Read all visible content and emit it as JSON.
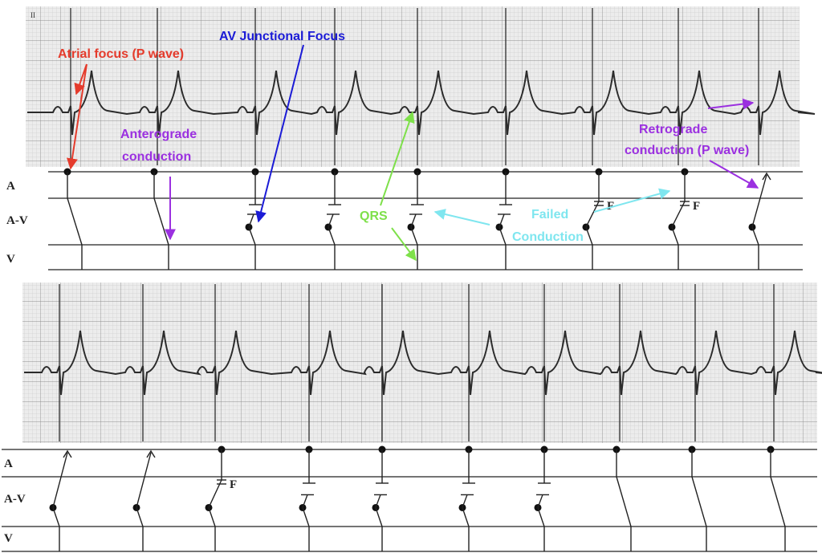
{
  "lead_label": "II",
  "ladder_labels": {
    "atrial": "A",
    "av": "A-V",
    "ventricular": "V"
  },
  "failed_marker": "F",
  "annotations": {
    "atrial_focus": {
      "text": "Atrial focus (P wave)",
      "color": "#e53b2c"
    },
    "av_junctional_focus": {
      "text": "AV Junctional Focus",
      "color": "#1b1bd6"
    },
    "anterograde": {
      "line1": "Anterograde",
      "line2": "conduction",
      "color": "#9b30e0"
    },
    "qrs": {
      "text": "QRS",
      "color": "#7ee04a"
    },
    "failed": {
      "line1": "Failed",
      "line2": "Conduction",
      "color": "#7fe6ef"
    },
    "retrograde": {
      "line1": "Retrograde",
      "line2": "conduction (P wave)",
      "color": "#9b30e0"
    }
  },
  "colors": {
    "grid_bg": "#e9e9e9",
    "grid_minor": "#bdbdbd",
    "grid_major": "#8f8f8f",
    "trace": "#2b2b2b",
    "ladder": "#222222"
  },
  "strips": [
    {
      "beats": [
        {
          "type": "sinus_antegrade"
        },
        {
          "type": "sinus_antegrade"
        },
        {
          "type": "junctional_blocked"
        },
        {
          "type": "junctional_blocked"
        },
        {
          "type": "junctional_blocked"
        },
        {
          "type": "junctional_blocked"
        },
        {
          "type": "junctional_failed"
        },
        {
          "type": "junctional_failed"
        },
        {
          "type": "junctional_retrograde"
        }
      ]
    },
    {
      "beats": [
        {
          "type": "junctional_retrograde"
        },
        {
          "type": "junctional_retrograde"
        },
        {
          "type": "junctional_failed"
        },
        {
          "type": "junctional_blocked"
        },
        {
          "type": "junctional_blocked"
        },
        {
          "type": "junctional_blocked"
        },
        {
          "type": "junctional_blocked"
        },
        {
          "type": "sinus_antegrade"
        },
        {
          "type": "sinus_antegrade"
        },
        {
          "type": "sinus_antegrade"
        }
      ]
    }
  ]
}
